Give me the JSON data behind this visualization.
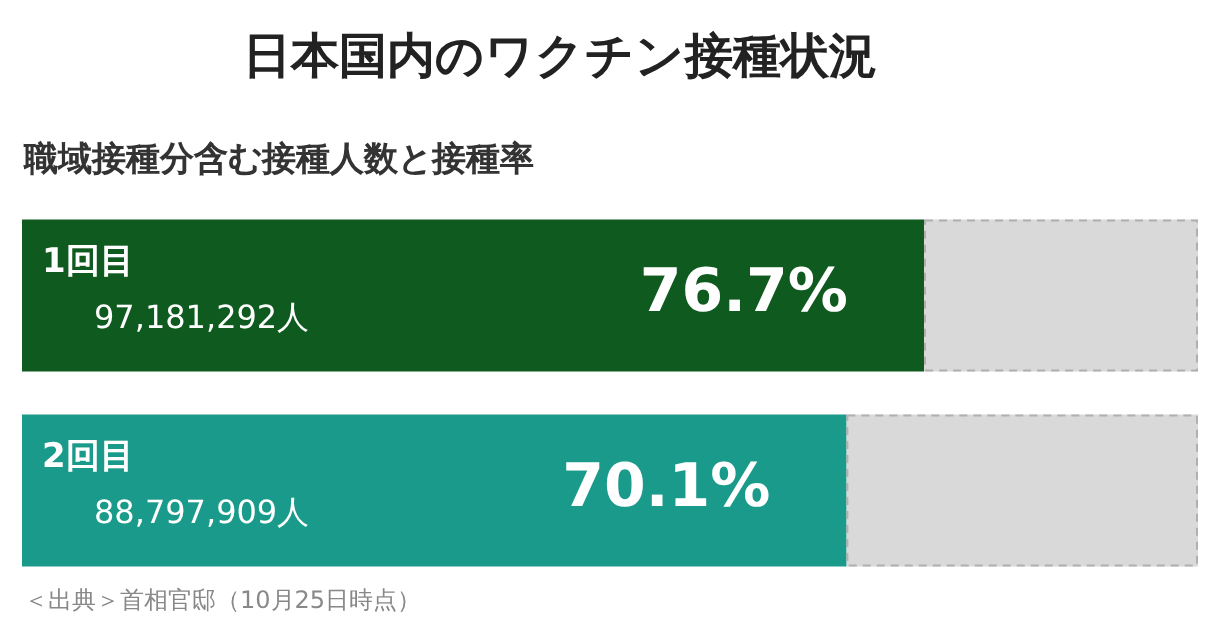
{
  "chart_data": {
    "type": "bar",
    "orientation": "horizontal",
    "stacked": true,
    "title": "日本国内のワクチン接種状況",
    "subtitle": "職域接種分含む接種人数と接種率",
    "categories": [
      "1回目",
      "2回目"
    ],
    "series": [
      {
        "colors": [
          "#0f5a1f",
          "#1a9a8a"
        ],
        "values": [
          76.7,
          70.1
        ],
        "value_labels": [
          "76.7%",
          "70.1%"
        ]
      },
      {
        "color": "#d9d9d9",
        "values": [
          23.3,
          29.9
        ]
      }
    ],
    "xlim": [
      0,
      100
    ],
    "tick_labels": "y",
    "legend": false,
    "annotations": [
      "97,181,292人",
      "88,797,909人",
      "＜出典＞首相官邸（10月25日時点）"
    ]
  }
}
